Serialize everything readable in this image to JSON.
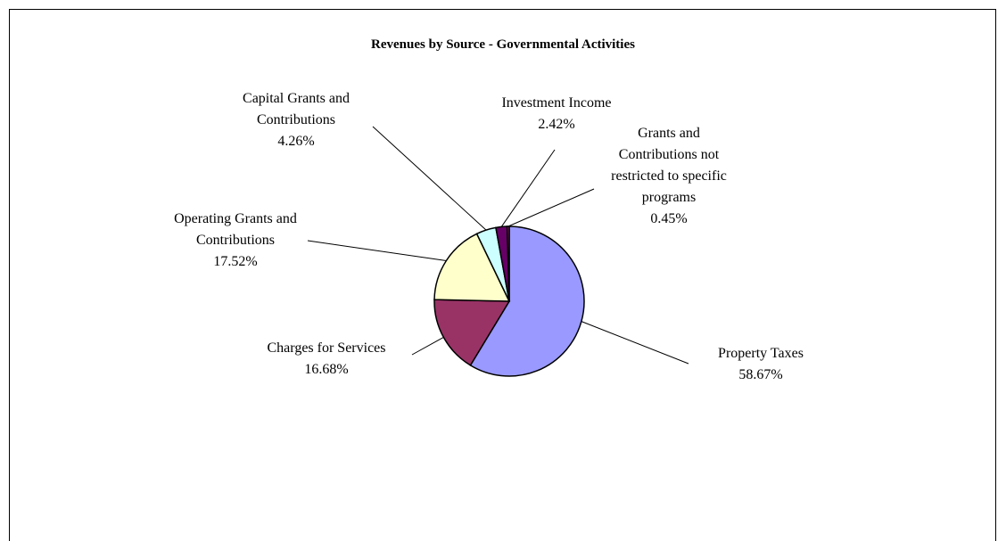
{
  "chart_data": {
    "type": "pie",
    "title": "Revenues by Source - Governmental Activities",
    "categories": [
      "Property Taxes",
      "Charges for Services",
      "Operating Grants and Contributions",
      "Capital Grants and Contributions",
      "Investment Income",
      "Grants and Contributions not restricted to specific programs"
    ],
    "values": [
      58.67,
      16.68,
      17.52,
      4.26,
      2.42,
      0.45
    ],
    "value_labels": [
      "58.67%",
      "16.68%",
      "17.52%",
      "4.26%",
      "2.42%",
      "0.45%"
    ],
    "colors": [
      "#9999ff",
      "#993366",
      "#ffffcc",
      "#ccffff",
      "#660066",
      "#993366"
    ]
  }
}
